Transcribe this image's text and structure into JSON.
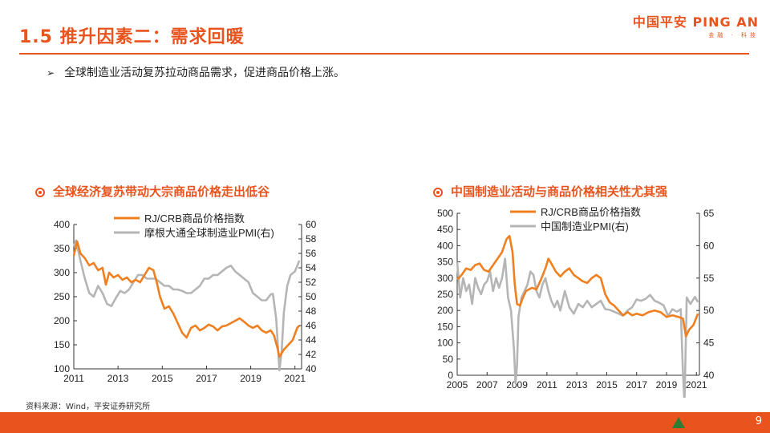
{
  "header": {
    "title": "1.5 推升因素二：需求回暖",
    "logo_main": "中国平安 PING AN",
    "logo_sub": "金融 · 科技"
  },
  "bullet": {
    "text": "全球制造业活动复苏拉动商品需求，促进商品价格上涨。"
  },
  "colors": {
    "accent": "#e9541e",
    "series_orange": "#f07f1f",
    "series_gray": "#b5b5b5"
  },
  "chart_data": [
    {
      "type": "line",
      "title": "全球经济复苏带动大宗商品价格走出低谷",
      "x_ticks": [
        "2011",
        "2013",
        "2015",
        "2017",
        "2019",
        "2021"
      ],
      "xlim": [
        2011,
        2021.3
      ],
      "ylim_left": [
        100,
        400
      ],
      "yticks_left": [
        100,
        150,
        200,
        250,
        300,
        350,
        400
      ],
      "ylim_right": [
        40,
        60
      ],
      "yticks_right": [
        40,
        42,
        44,
        46,
        48,
        50,
        52,
        54,
        56,
        58,
        60
      ],
      "grid": false,
      "legend_position": "top",
      "series": [
        {
          "name": "RJ/CRB商品价格指数",
          "axis": "left",
          "color": "#f07f1f",
          "x": [
            2011.0,
            2011.15,
            2011.3,
            2011.5,
            2011.7,
            2011.9,
            2012.1,
            2012.3,
            2012.45,
            2012.6,
            2012.8,
            2013.0,
            2013.2,
            2013.4,
            2013.6,
            2013.8,
            2014.0,
            2014.2,
            2014.4,
            2014.6,
            2014.75,
            2014.9,
            2015.1,
            2015.3,
            2015.5,
            2015.7,
            2015.9,
            2016.1,
            2016.3,
            2016.5,
            2016.7,
            2016.9,
            2017.1,
            2017.3,
            2017.5,
            2017.7,
            2017.9,
            2018.1,
            2018.3,
            2018.5,
            2018.7,
            2018.9,
            2019.1,
            2019.3,
            2019.5,
            2019.7,
            2019.9,
            2020.05,
            2020.2,
            2020.3,
            2020.5,
            2020.7,
            2020.9,
            2021.1,
            2021.2
          ],
          "y": [
            335,
            365,
            340,
            330,
            315,
            320,
            305,
            310,
            275,
            300,
            290,
            295,
            285,
            290,
            280,
            285,
            280,
            295,
            310,
            305,
            280,
            250,
            225,
            230,
            215,
            195,
            175,
            165,
            185,
            190,
            180,
            185,
            192,
            188,
            180,
            188,
            190,
            195,
            200,
            205,
            198,
            190,
            185,
            190,
            180,
            175,
            180,
            170,
            145,
            125,
            140,
            150,
            160,
            185,
            190
          ]
        },
        {
          "name": "摩根大通全球制造业PMI(右)",
          "axis": "right",
          "color": "#b5b5b5",
          "x": [
            2011.0,
            2011.1,
            2011.3,
            2011.5,
            2011.7,
            2011.9,
            2012.1,
            2012.3,
            2012.5,
            2012.7,
            2012.9,
            2013.1,
            2013.3,
            2013.5,
            2013.7,
            2013.9,
            2014.1,
            2014.3,
            2014.5,
            2014.7,
            2014.9,
            2015.1,
            2015.3,
            2015.5,
            2015.7,
            2015.9,
            2016.1,
            2016.3,
            2016.5,
            2016.7,
            2016.9,
            2017.1,
            2017.3,
            2017.5,
            2017.7,
            2017.9,
            2018.1,
            2018.3,
            2018.5,
            2018.7,
            2018.9,
            2019.1,
            2019.3,
            2019.5,
            2019.7,
            2019.9,
            2020.0,
            2020.15,
            2020.3,
            2020.4,
            2020.5,
            2020.65,
            2020.8,
            2021.0,
            2021.2
          ],
          "y": [
            57,
            57.8,
            55,
            52.5,
            50.5,
            50,
            51.5,
            50.5,
            49,
            48.7,
            49.8,
            50.8,
            50.5,
            51,
            52,
            53,
            53,
            52.5,
            52.5,
            52.5,
            52,
            51.5,
            51.5,
            51,
            51,
            50.8,
            50.5,
            50.5,
            51,
            51.5,
            52.5,
            52.5,
            53,
            53,
            53.5,
            54,
            54.3,
            53.5,
            53,
            52.5,
            52,
            50.5,
            50,
            49.5,
            49.5,
            50.3,
            50.4,
            47,
            39.8,
            42.5,
            47.8,
            51.5,
            53,
            53.5,
            55
          ]
        }
      ]
    },
    {
      "type": "line",
      "title": "中国制造业活动与商品价格相关性尤其强",
      "x_ticks": [
        "2005",
        "2007",
        "2009",
        "2011",
        "2013",
        "2015",
        "2017",
        "2019",
        "2021"
      ],
      "xlim": [
        2005,
        2021.2
      ],
      "ylim_left": [
        0,
        500
      ],
      "yticks_left": [
        0,
        50,
        100,
        150,
        200,
        250,
        300,
        350,
        400,
        450,
        500
      ],
      "ylim_right": [
        40,
        65
      ],
      "yticks_right": [
        40,
        45,
        50,
        55,
        60,
        65
      ],
      "grid": false,
      "legend_position": "top",
      "series": [
        {
          "name": "RJ/CRB商品价格指数",
          "axis": "left",
          "color": "#f07f1f",
          "x": [
            2005.0,
            2005.3,
            2005.6,
            2005.9,
            2006.2,
            2006.5,
            2006.8,
            2007.1,
            2007.4,
            2007.7,
            2008.0,
            2008.3,
            2008.5,
            2008.7,
            2008.85,
            2009.0,
            2009.2,
            2009.4,
            2009.6,
            2009.8,
            2010.0,
            2010.3,
            2010.6,
            2010.9,
            2011.1,
            2011.3,
            2011.6,
            2011.9,
            2012.2,
            2012.5,
            2012.8,
            2013.1,
            2013.4,
            2013.7,
            2014.0,
            2014.3,
            2014.6,
            2014.9,
            2015.2,
            2015.5,
            2015.8,
            2016.1,
            2016.4,
            2016.7,
            2017.0,
            2017.4,
            2017.8,
            2018.2,
            2018.6,
            2019.0,
            2019.4,
            2019.8,
            2020.1,
            2020.3,
            2020.5,
            2020.8,
            2021.1
          ],
          "y": [
            295,
            310,
            330,
            325,
            340,
            345,
            325,
            320,
            340,
            360,
            380,
            420,
            430,
            380,
            280,
            220,
            215,
            240,
            260,
            265,
            270,
            265,
            295,
            330,
            360,
            345,
            320,
            305,
            320,
            330,
            310,
            300,
            290,
            285,
            300,
            310,
            300,
            250,
            225,
            215,
            200,
            185,
            195,
            185,
            190,
            185,
            195,
            200,
            195,
            180,
            185,
            180,
            175,
            120,
            140,
            155,
            190
          ]
        },
        {
          "name": "中国制造业PMI(右)",
          "axis": "right",
          "color": "#b5b5b5",
          "x": [
            2005.0,
            2005.2,
            2005.4,
            2005.6,
            2005.8,
            2006.0,
            2006.2,
            2006.4,
            2006.6,
            2006.8,
            2007.0,
            2007.2,
            2007.4,
            2007.6,
            2007.8,
            2008.0,
            2008.2,
            2008.4,
            2008.6,
            2008.8,
            2008.9,
            2009.0,
            2009.1,
            2009.3,
            2009.5,
            2009.7,
            2009.9,
            2010.1,
            2010.3,
            2010.5,
            2010.7,
            2010.9,
            2011.1,
            2011.3,
            2011.5,
            2011.7,
            2011.9,
            2012.2,
            2012.5,
            2012.8,
            2013.1,
            2013.4,
            2013.7,
            2014.0,
            2014.3,
            2014.6,
            2014.9,
            2015.2,
            2015.5,
            2015.8,
            2016.1,
            2016.4,
            2016.7,
            2017.0,
            2017.3,
            2017.6,
            2017.9,
            2018.2,
            2018.5,
            2018.8,
            2019.1,
            2019.4,
            2019.7,
            2019.95,
            2020.1,
            2020.2,
            2020.35,
            2020.6,
            2020.9,
            2021.1
          ],
          "y": [
            57.5,
            52,
            55,
            53,
            54,
            51,
            55,
            53.5,
            52.5,
            54,
            54.5,
            56,
            53,
            55,
            53.5,
            55,
            58,
            52,
            50,
            44,
            38.8,
            41.5,
            49,
            52,
            53,
            54,
            56,
            55.5,
            53,
            52,
            54,
            55,
            53,
            51.5,
            50.5,
            51.5,
            50,
            53,
            50.5,
            49.5,
            51,
            50.5,
            51.5,
            50.5,
            51,
            51.5,
            50.2,
            50.1,
            49.8,
            49.5,
            49.2,
            50,
            50.5,
            51.7,
            51.5,
            51.8,
            52.4,
            51.5,
            51.2,
            50.8,
            49.2,
            50.2,
            49.8,
            50.2,
            40.3,
            35.7,
            52,
            51,
            52.1,
            51.3
          ]
        }
      ]
    }
  ],
  "source": "资料来源：Wind，平安证券研究所",
  "footer": {
    "page_number": "9"
  }
}
